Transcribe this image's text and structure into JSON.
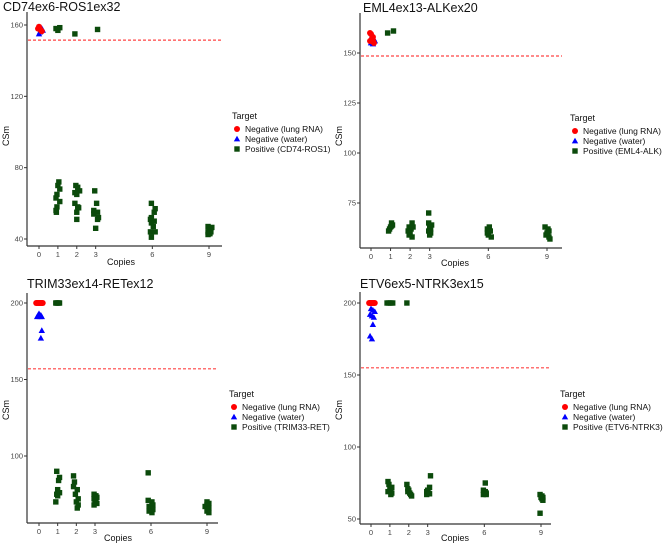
{
  "colors": {
    "lung": "#ff0000",
    "water": "#0000ff",
    "positive": "#0b4a0b",
    "threshold": "#ff4444"
  },
  "chart_data": [
    {
      "type": "scatter",
      "title": "CD74ex6-ROS1ex32",
      "xlabel": "Copies",
      "ylabel": "CSm",
      "xticks": [
        0,
        1,
        2,
        3,
        6,
        9
      ],
      "yticks": [
        40,
        80,
        120,
        160
      ],
      "threshold": 151.5,
      "legend": {
        "title": "Target",
        "position": "right",
        "entries": [
          "Negative (lung RNA)",
          "Negative (water)",
          "Positive (CD74-ROS1)"
        ]
      },
      "series": [
        {
          "name": "Negative (lung RNA)",
          "shape": "circle",
          "points": [
            [
              -0.05,
              158
            ],
            [
              0,
              159
            ],
            [
              0.05,
              158
            ],
            [
              0.1,
              157
            ],
            [
              0.15,
              156.5
            ]
          ]
        },
        {
          "name": "Negative (water)",
          "shape": "triangle",
          "points": [
            [
              0,
              155
            ],
            [
              0.05,
              156
            ],
            [
              0.1,
              157
            ],
            [
              0.15,
              158
            ],
            [
              0.2,
              157
            ]
          ]
        },
        {
          "name": "Positive (CD74-ROS1)",
          "shape": "square",
          "points": [
            [
              0.9,
              158
            ],
            [
              1,
              157
            ],
            [
              1.1,
              158.5
            ],
            [
              1.9,
              155
            ],
            [
              3.1,
              157.5
            ],
            [
              1.05,
              72
            ],
            [
              1,
              70
            ],
            [
              1.1,
              68
            ],
            [
              0.95,
              65
            ],
            [
              0.9,
              63
            ],
            [
              1.1,
              61
            ],
            [
              0.95,
              58
            ],
            [
              0.9,
              56
            ],
            [
              0.92,
              55
            ],
            [
              1.95,
              70
            ],
            [
              2.05,
              69
            ],
            [
              1.9,
              66
            ],
            [
              2.15,
              67
            ],
            [
              2,
              65
            ],
            [
              1.9,
              60
            ],
            [
              2.05,
              58
            ],
            [
              2.1,
              57.5
            ],
            [
              2,
              55
            ],
            [
              2,
              51
            ],
            [
              2.95,
              67
            ],
            [
              3.05,
              60
            ],
            [
              2.9,
              56
            ],
            [
              3.1,
              55
            ],
            [
              2.9,
              54
            ],
            [
              3.15,
              52
            ],
            [
              3.1,
              51
            ],
            [
              3,
              46
            ],
            [
              5.95,
              60
            ],
            [
              6.15,
              57
            ],
            [
              6.1,
              55
            ],
            [
              5.95,
              52
            ],
            [
              5.9,
              51
            ],
            [
              6.1,
              50
            ],
            [
              5.95,
              49
            ],
            [
              6.05,
              47
            ],
            [
              5.9,
              44
            ],
            [
              6.15,
              44
            ],
            [
              5.95,
              41
            ],
            [
              8.95,
              47
            ],
            [
              9.1,
              46
            ],
            [
              9,
              45
            ],
            [
              9.05,
              45
            ],
            [
              8.95,
              44
            ],
            [
              9.1,
              44
            ],
            [
              9,
              43
            ],
            [
              9.05,
              43
            ],
            [
              8.95,
              42.5
            ],
            [
              9.15,
              46.5
            ]
          ]
        }
      ]
    },
    {
      "type": "scatter",
      "title": "EML4ex13-ALKex20",
      "xlabel": "Copies",
      "ylabel": "CSm",
      "xticks": [
        0,
        1,
        2,
        3,
        6,
        9
      ],
      "yticks": [
        75,
        100,
        125,
        150
      ],
      "threshold": 148.5,
      "legend": {
        "title": "Target",
        "position": "right",
        "entries": [
          "Negative (lung RNA)",
          "Negative (water)",
          "Positive (EML4-ALK)"
        ]
      },
      "series": [
        {
          "name": "Negative (lung RNA)",
          "shape": "circle",
          "points": [
            [
              -0.05,
              160
            ],
            [
              0,
              159.5
            ],
            [
              0.1,
              158
            ],
            [
              -0.05,
              156
            ],
            [
              0.15,
              155
            ],
            [
              0.1,
              156.5
            ],
            [
              0.05,
              157
            ]
          ]
        },
        {
          "name": "Negative (water)",
          "shape": "triangle",
          "points": [
            [
              0.05,
              158.5
            ],
            [
              0.15,
              157
            ],
            [
              0,
              155
            ],
            [
              0.1,
              154.5
            ],
            [
              0.2,
              156
            ]
          ]
        },
        {
          "name": "Positive (EML4-ALK)",
          "shape": "square",
          "points": [
            [
              0.85,
              160
            ],
            [
              1.15,
              161
            ],
            [
              1.05,
              65
            ],
            [
              1.1,
              64
            ],
            [
              1,
              63
            ],
            [
              0.95,
              62
            ],
            [
              0.9,
              61
            ],
            [
              1.05,
              63.5
            ],
            [
              2.1,
              65
            ],
            [
              1.95,
              63
            ],
            [
              2.05,
              62
            ],
            [
              1.9,
              61
            ],
            [
              2,
              60
            ],
            [
              1.95,
              59
            ],
            [
              2.1,
              58
            ],
            [
              2.15,
              63
            ],
            [
              2.95,
              70
            ],
            [
              2.95,
              65
            ],
            [
              3.1,
              64
            ],
            [
              3,
              63
            ],
            [
              3.05,
              62
            ],
            [
              2.95,
              61
            ],
            [
              3.05,
              60
            ],
            [
              3,
              59
            ],
            [
              6.05,
              63
            ],
            [
              5.95,
              62
            ],
            [
              6.1,
              61
            ],
            [
              5.95,
              60
            ],
            [
              6,
              59
            ],
            [
              6.15,
              58
            ],
            [
              6.05,
              61
            ],
            [
              8.9,
              63
            ],
            [
              9.05,
              62
            ],
            [
              9.1,
              61
            ],
            [
              9,
              60
            ],
            [
              8.95,
              59
            ],
            [
              9.1,
              58
            ],
            [
              9.15,
              57
            ],
            [
              9.05,
              60
            ]
          ]
        }
      ]
    },
    {
      "type": "scatter",
      "title": "TRIM33ex14-RETex12",
      "xlabel": "Copies",
      "ylabel": "CSm",
      "xticks": [
        0,
        1,
        2,
        3,
        6,
        9
      ],
      "yticks": [
        100,
        150,
        200
      ],
      "threshold": 157,
      "legend": {
        "title": "Target",
        "position": "right",
        "entries": [
          "Negative (lung RNA)",
          "Negative (water)",
          "Positive (TRIM33-RET)"
        ]
      },
      "series": [
        {
          "name": "Negative (lung RNA)",
          "shape": "circle",
          "points": [
            [
              -0.15,
              200
            ],
            [
              -0.1,
              200
            ],
            [
              -0.05,
              200
            ],
            [
              0,
              200
            ],
            [
              0.05,
              200
            ],
            [
              0.1,
              200
            ],
            [
              0.15,
              200
            ],
            [
              0.2,
              200
            ]
          ]
        },
        {
          "name": "Negative (water)",
          "shape": "triangle",
          "points": [
            [
              -0.1,
              191
            ],
            [
              -0.05,
              192
            ],
            [
              0,
              193
            ],
            [
              0.05,
              191
            ],
            [
              0.1,
              192
            ],
            [
              0.15,
              191
            ],
            [
              0.15,
              182
            ],
            [
              0.1,
              177
            ]
          ]
        },
        {
          "name": "Positive (TRIM33-RET)",
          "shape": "square",
          "points": [
            [
              0.9,
              200
            ],
            [
              0.95,
              200
            ],
            [
              1,
              200
            ],
            [
              1.05,
              200
            ],
            [
              1.1,
              200
            ],
            [
              0.95,
              90
            ],
            [
              1.1,
              86
            ],
            [
              1.05,
              84
            ],
            [
              1,
              78
            ],
            [
              1.1,
              76
            ],
            [
              0.95,
              75
            ],
            [
              1,
              74
            ],
            [
              0.9,
              70
            ],
            [
              1.85,
              87
            ],
            [
              1.9,
              83
            ],
            [
              1.85,
              80
            ],
            [
              2.05,
              78
            ],
            [
              1.95,
              75
            ],
            [
              2.1,
              72
            ],
            [
              2,
              70
            ],
            [
              2.1,
              68
            ],
            [
              2.05,
              66
            ],
            [
              2.95,
              75
            ],
            [
              3.05,
              74
            ],
            [
              3.1,
              73
            ],
            [
              2.95,
              72
            ],
            [
              3.05,
              71
            ],
            [
              3,
              70
            ],
            [
              3.1,
              69
            ],
            [
              2.95,
              68
            ],
            [
              5.85,
              89
            ],
            [
              5.85,
              71
            ],
            [
              6.05,
              70
            ],
            [
              6.1,
              68
            ],
            [
              5.9,
              67
            ],
            [
              6,
              66
            ],
            [
              6.1,
              65
            ],
            [
              5.9,
              64
            ],
            [
              6.05,
              63
            ],
            [
              8.9,
              67
            ],
            [
              9,
              70
            ],
            [
              9.1,
              69
            ],
            [
              9,
              68
            ],
            [
              9.1,
              66
            ],
            [
              9.05,
              65
            ],
            [
              9,
              64
            ],
            [
              9.1,
              63
            ]
          ]
        }
      ]
    },
    {
      "type": "scatter",
      "title": "ETV6ex5-NTRK3ex15",
      "xlabel": "Copies",
      "ylabel": "CSm",
      "xticks": [
        0,
        1,
        2,
        3,
        6,
        9
      ],
      "yticks": [
        50,
        100,
        150,
        200
      ],
      "threshold": 155,
      "legend": {
        "title": "Target",
        "position": "right",
        "entries": [
          "Negative (lung RNA)",
          "Negative (water)",
          "Positive (ETV6-NTRK3)"
        ]
      },
      "series": [
        {
          "name": "Negative (lung RNA)",
          "shape": "circle",
          "points": [
            [
              -0.1,
              200
            ],
            [
              -0.05,
              200
            ],
            [
              0,
              200
            ],
            [
              0.05,
              200
            ],
            [
              0.1,
              200
            ],
            [
              0.15,
              200
            ],
            [
              0.2,
              200
            ]
          ]
        },
        {
          "name": "Negative (water)",
          "shape": "triangle",
          "points": [
            [
              0,
              196
            ],
            [
              0.1,
              195
            ],
            [
              0.2,
              194
            ],
            [
              -0.05,
              192
            ],
            [
              0.05,
              191
            ],
            [
              0.15,
              190
            ],
            [
              0.1,
              185
            ],
            [
              -0.05,
              177
            ],
            [
              0.05,
              175
            ]
          ]
        },
        {
          "name": "Positive (ETV6-NTRK3)",
          "shape": "square",
          "points": [
            [
              0.85,
              200
            ],
            [
              0.95,
              200
            ],
            [
              1.05,
              200
            ],
            [
              1.15,
              200
            ],
            [
              1.9,
              200
            ],
            [
              0.9,
              76
            ],
            [
              0.95,
              74
            ],
            [
              1.1,
              72
            ],
            [
              1,
              71
            ],
            [
              1.05,
              70
            ],
            [
              0.9,
              69
            ],
            [
              1.1,
              68
            ],
            [
              1.05,
              67
            ],
            [
              1.9,
              74
            ],
            [
              1.95,
              71
            ],
            [
              2,
              70
            ],
            [
              1.95,
              69
            ],
            [
              2.05,
              68
            ],
            [
              2.1,
              67
            ],
            [
              2.15,
              66
            ],
            [
              3.15,
              80
            ],
            [
              3.1,
              72
            ],
            [
              3,
              70
            ],
            [
              2.95,
              69
            ],
            [
              3.05,
              68
            ],
            [
              2.95,
              67
            ],
            [
              3.1,
              67.5
            ],
            [
              6.05,
              75
            ],
            [
              5.95,
              70
            ],
            [
              6.05,
              69
            ],
            [
              6.1,
              68
            ],
            [
              5.95,
              67
            ],
            [
              6.1,
              67
            ],
            [
              8.95,
              67
            ],
            [
              9.05,
              66
            ],
            [
              9.1,
              65
            ],
            [
              9,
              65
            ],
            [
              9.05,
              64
            ],
            [
              9.1,
              63
            ],
            [
              8.95,
              54
            ]
          ]
        }
      ]
    }
  ]
}
